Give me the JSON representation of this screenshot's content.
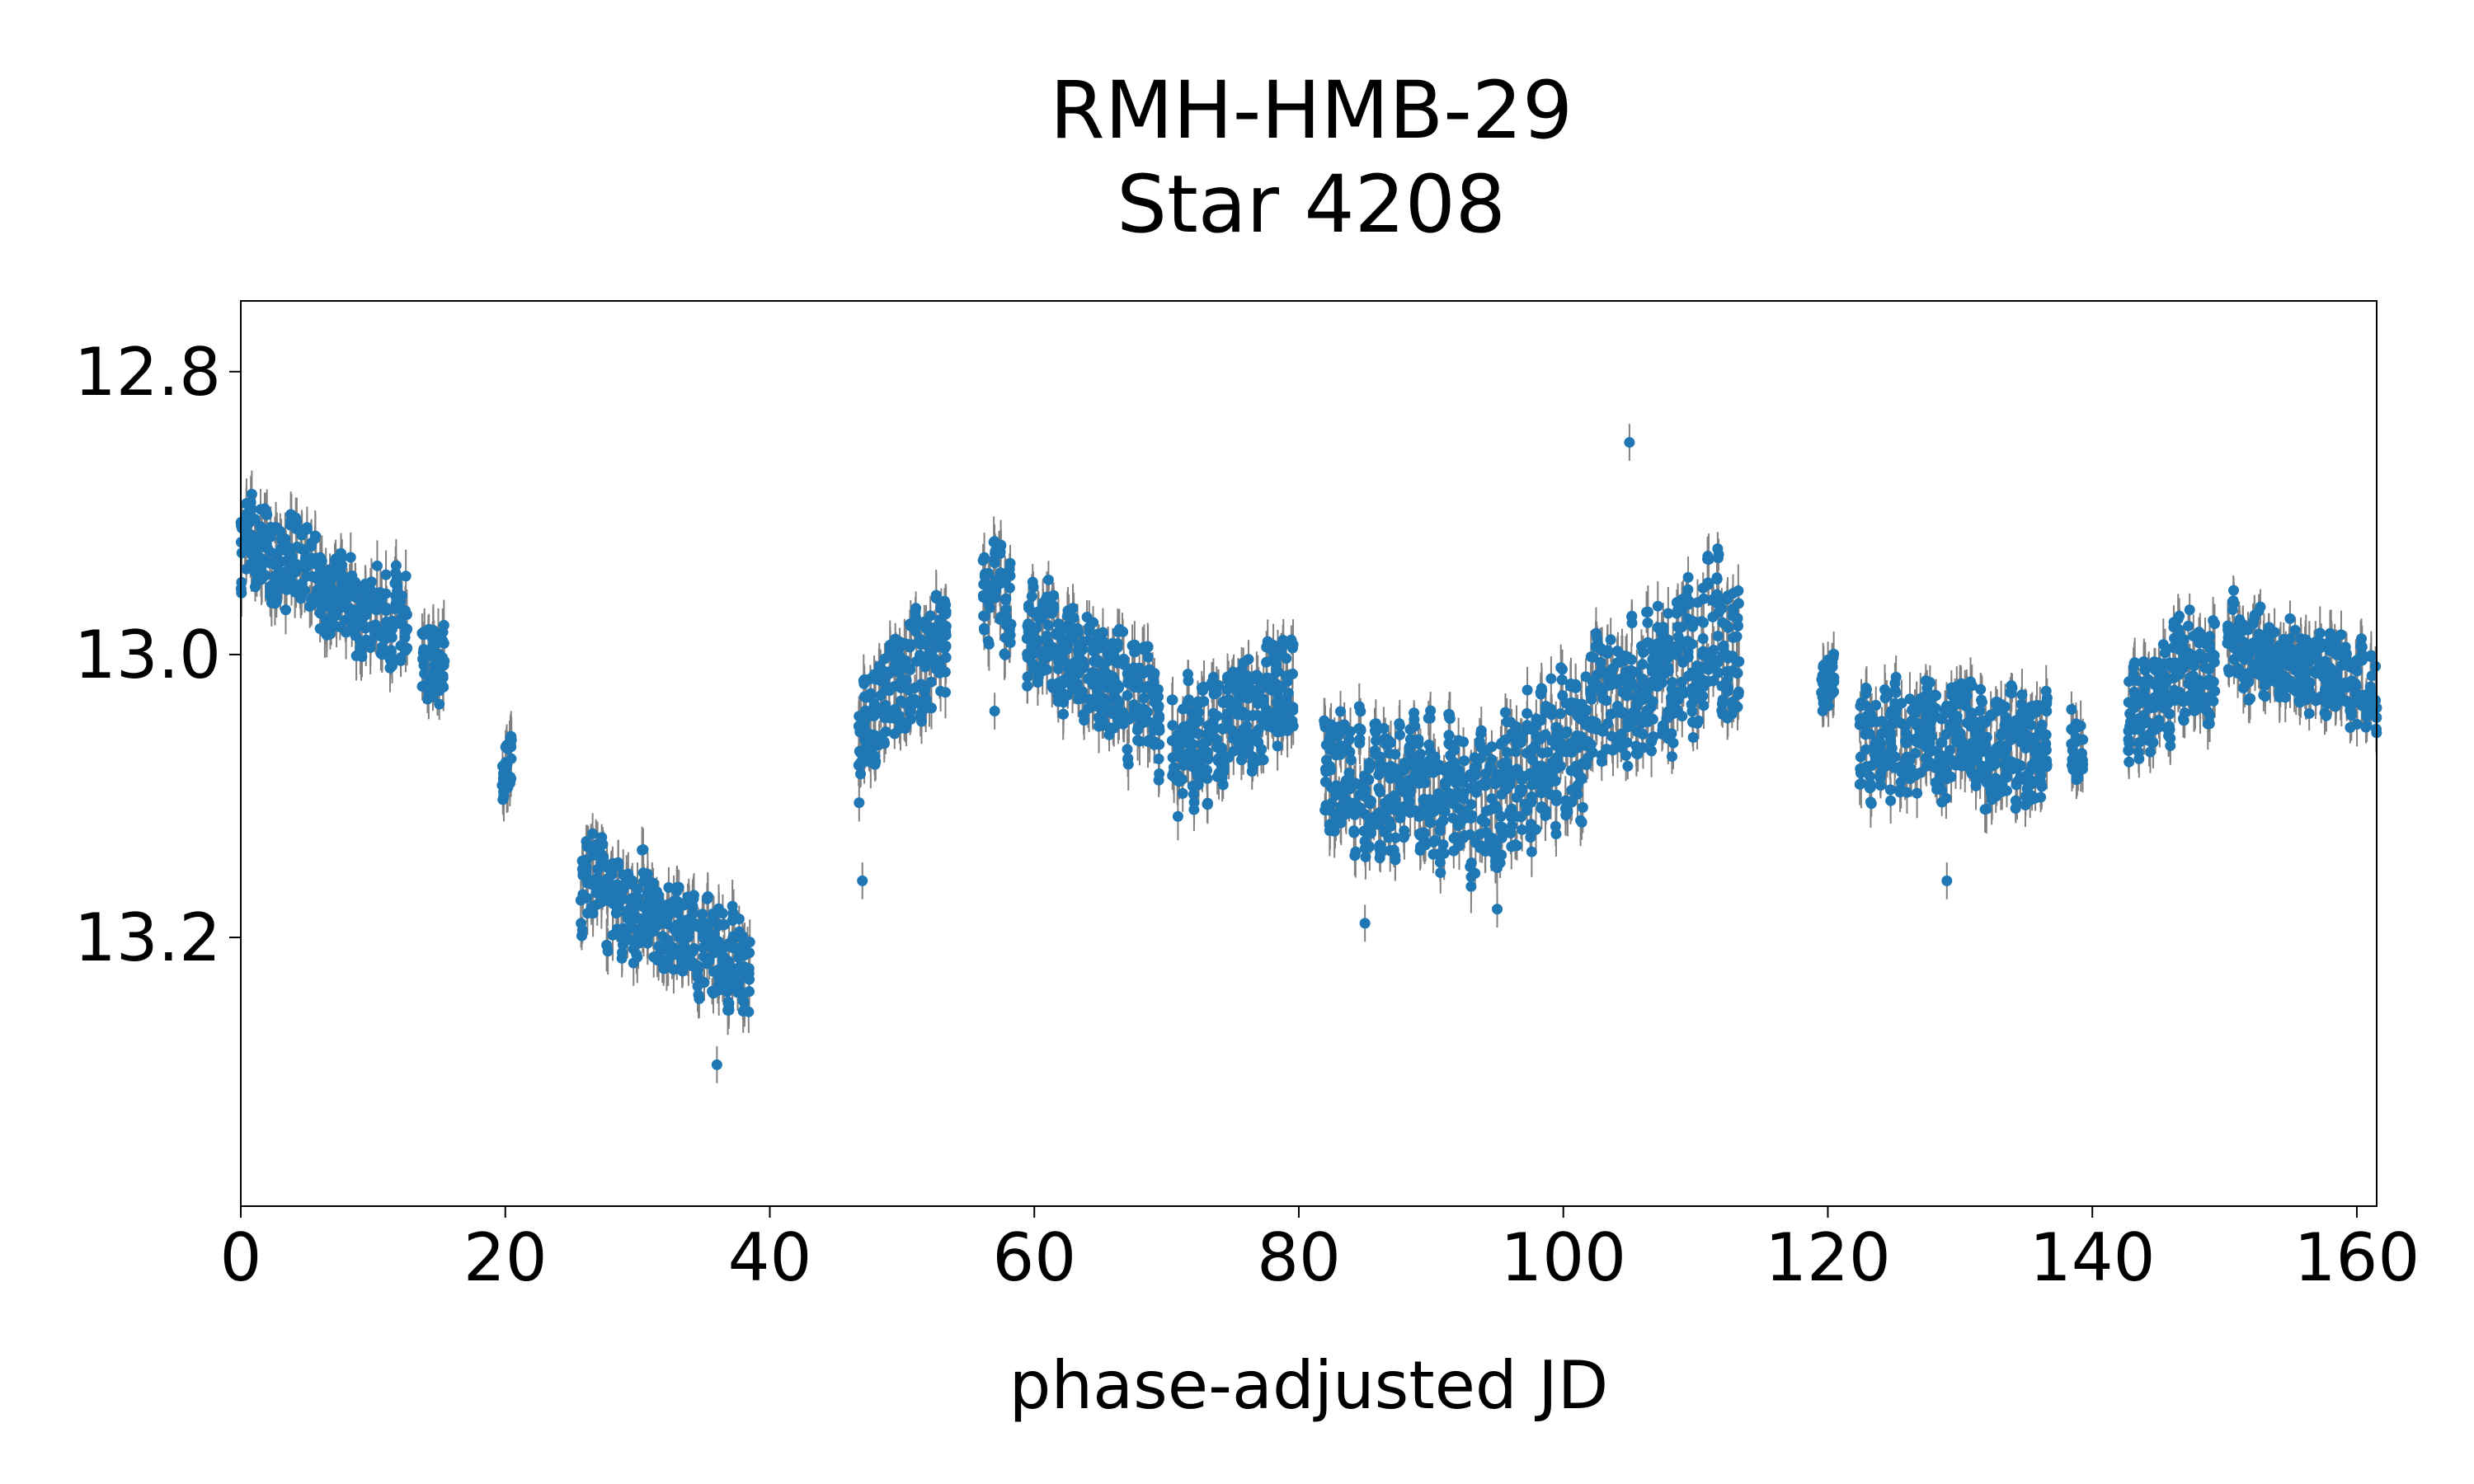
{
  "title_line1": "RMH-HMB-29",
  "title_line2": "Star 4208",
  "chart_data": {
    "type": "scatter",
    "title": "RMH-HMB-29 Star 4208",
    "xlabel": "phase-adjusted JD",
    "ylabel": "",
    "xlim": [
      0,
      161.5
    ],
    "ylim": [
      13.39,
      12.75
    ],
    "y_inverted": true,
    "x_ticks": [
      0,
      20,
      40,
      60,
      80,
      100,
      120,
      140,
      160
    ],
    "y_ticks": [
      12.8,
      13.0,
      13.2
    ],
    "y_tick_labels": [
      "12.8",
      "13.0",
      "13.2"
    ],
    "grid": false,
    "has_error_bars": true,
    "marker_color": "#1f77b4",
    "errorbar_color": "#808080",
    "segments": [
      {
        "x": [
          0,
          12.5
        ],
        "y": [
          12.92,
          12.98
        ],
        "spread": 0.055
      },
      {
        "x": [
          13.8,
          15.3
        ],
        "y": [
          13.0,
          13.0
        ],
        "spread": 0.05
      },
      {
        "x": [
          19.8,
          20.4
        ],
        "y": [
          13.08,
          13.08
        ],
        "spread": 0.035
      },
      {
        "x": [
          25.8,
          38.4
        ],
        "y": [
          13.16,
          13.22
        ],
        "spread": 0.06
      },
      {
        "x": [
          46.8,
          53.3
        ],
        "y": [
          13.06,
          12.99
        ],
        "spread": 0.07
      },
      {
        "x": [
          56.2,
          58.2
        ],
        "y": [
          12.96,
          12.96
        ],
        "spread": 0.06
      },
      {
        "x": [
          59.5,
          69.4
        ],
        "y": [
          12.98,
          13.05
        ],
        "spread": 0.07
      },
      {
        "x": [
          70.5,
          79.5
        ],
        "y": [
          13.07,
          13.03
        ],
        "spread": 0.07
      },
      {
        "x": [
          82.0,
          92.5
        ],
        "y": [
          13.09,
          13.1
        ],
        "spread": 0.08
      },
      {
        "x": [
          93.0,
          113.2
        ],
        "y": [
          13.11,
          12.98
        ],
        "spread": 0.09
      },
      {
        "x": [
          119.6,
          120.4
        ],
        "y": [
          13.02,
          13.02
        ],
        "spread": 0.035
      },
      {
        "x": [
          122.5,
          136.5
        ],
        "y": [
          13.06,
          13.06
        ],
        "spread": 0.07
      },
      {
        "x": [
          138.5,
          139.2
        ],
        "y": [
          13.07,
          13.07
        ],
        "spread": 0.045
      },
      {
        "x": [
          142.8,
          149.2
        ],
        "y": [
          13.04,
          13.0
        ],
        "spread": 0.065
      },
      {
        "x": [
          150.3,
          161.5
        ],
        "y": [
          12.99,
          13.03
        ],
        "spread": 0.05
      }
    ],
    "outliers": [
      {
        "x": 105,
        "y": 12.85
      },
      {
        "x": 57,
        "y": 13.04
      },
      {
        "x": 47,
        "y": 13.16
      },
      {
        "x": 36,
        "y": 13.29
      },
      {
        "x": 85,
        "y": 13.19
      },
      {
        "x": 95,
        "y": 13.18
      },
      {
        "x": 129,
        "y": 13.16
      }
    ]
  }
}
